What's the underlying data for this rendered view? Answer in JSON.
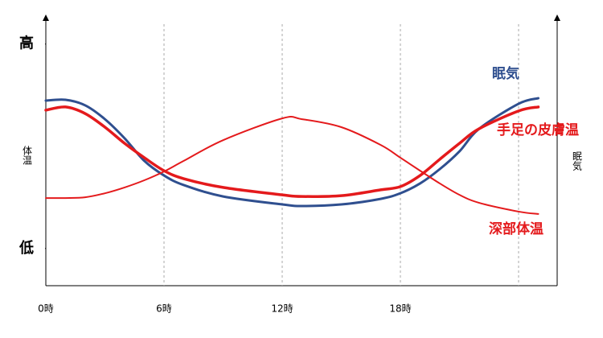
{
  "chart_data": {
    "type": "line",
    "y_label": "体温",
    "y2_label": "眠気",
    "x": [
      0,
      1,
      2,
      3,
      4,
      5,
      6,
      7,
      9,
      12,
      13,
      15,
      17,
      18,
      19,
      20,
      21,
      22,
      24,
      25
    ],
    "xlim": [
      0,
      26
    ],
    "xticks": [
      {
        "value": 0,
        "label": "0時"
      },
      {
        "value": 6,
        "label": "6時"
      },
      {
        "value": 12,
        "label": "12時"
      },
      {
        "value": 18,
        "label": "18時"
      },
      {
        "value": 24,
        "label": null
      }
    ],
    "ylim": [
      0,
      100
    ],
    "yticks": [
      {
        "value": 91,
        "label": "高"
      },
      {
        "value": 14,
        "label": "低"
      }
    ],
    "grid": true,
    "series": [
      {
        "name": "眠気",
        "color": "#2f4f8f",
        "width": 3,
        "values": [
          69.7,
          70,
          67.9,
          62.7,
          55.5,
          47,
          41.5,
          37.9,
          33.6,
          30.6,
          30,
          30.6,
          32.7,
          34.8,
          38.5,
          43.9,
          50.6,
          59.1,
          68.5,
          70.6
        ]
      },
      {
        "name": "手足の皮膚温",
        "color": "#e41a1c",
        "width": 3.5,
        "values": [
          66.1,
          67.3,
          64.8,
          59.7,
          53.6,
          48.2,
          43.3,
          40.3,
          37,
          34.2,
          33.6,
          33.9,
          36.1,
          37.3,
          41.5,
          47.6,
          53.6,
          59.1,
          65.8,
          67.3
        ]
      },
      {
        "name": "深部体温",
        "color": "#e41a1c",
        "width": 2,
        "values": [
          33,
          33,
          33.3,
          34.8,
          37,
          39.7,
          43,
          47,
          54.8,
          63,
          62.7,
          59.7,
          53,
          48.2,
          43.3,
          38.5,
          34.2,
          31.2,
          27.9,
          27
        ]
      }
    ]
  }
}
